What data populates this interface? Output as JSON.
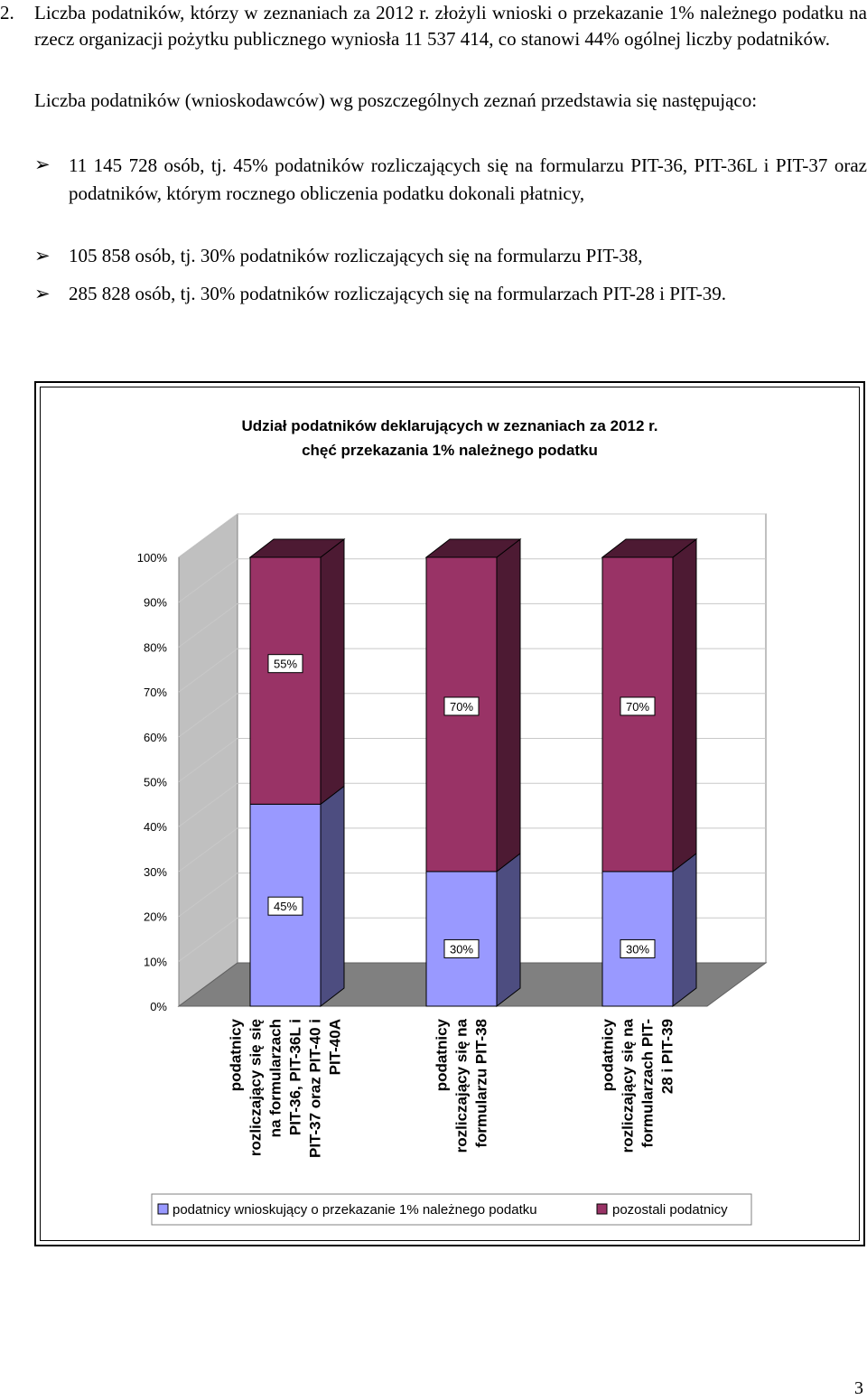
{
  "section": {
    "number": "2.",
    "paragraph1": "Liczba podatników, którzy w zeznaniach za 2012 r. złożyli wnioski o przekazanie 1% należnego podatku na rzecz organizacji pożytku publicznego wyniosła 11 537 414, co stanowi 44% ogólnej liczby podatników.",
    "paragraph2": "Liczba podatników (wnioskodawców) wg poszczególnych zeznań przedstawia się następująco:",
    "bullet_glyph": "➢",
    "bullets": [
      "11 145 728 osób, tj. 45% podatników rozliczających się na formularzu PIT-36, PIT-36L i PIT-37 oraz podatników, którym rocznego obliczenia podatku dokonali płatnicy,",
      "105 858 osób, tj. 30% podatników rozliczających się na formularzu PIT-38,",
      "285 828 osób, tj. 30% podatników rozliczających się na formularzach PIT-28 i PIT-39."
    ]
  },
  "chart_data": {
    "type": "bar",
    "stacked": true,
    "three_d": true,
    "title": [
      "Udział podatników deklarujących w zeznaniach za 2012 r.",
      "chęć przekazania 1% należnego podatku"
    ],
    "categories": [
      [
        "podatnicy",
        "rozliczający się się",
        "na formularzach",
        "PIT-36, PIT-36L i",
        "PIT-37 oraz PIT-40 i",
        "PIT-40A"
      ],
      [
        "podatnicy",
        "rozliczający się na",
        "formularzu PIT-38"
      ],
      [
        "podatnicy",
        "rozliczający się na",
        "formularzach PIT-",
        "28 i PIT-39"
      ]
    ],
    "series": [
      {
        "name": "podatnicy wnioskujący o przekazanie 1% należnego podatku",
        "values": [
          45,
          30,
          30
        ],
        "labels": [
          "45%",
          "30%",
          "30%"
        ],
        "color": "#9999ff",
        "side_color": "#4d4d80"
      },
      {
        "name": "pozostali podatnicy",
        "values": [
          55,
          70,
          70
        ],
        "labels": [
          "55%",
          "70%",
          "70%"
        ],
        "color": "#993366",
        "side_color": "#4d1a33"
      }
    ],
    "yticks": [
      "0%",
      "10%",
      "20%",
      "30%",
      "40%",
      "50%",
      "60%",
      "70%",
      "80%",
      "90%",
      "100%"
    ],
    "ylim": [
      0,
      100
    ],
    "legend_position": "bottom"
  },
  "page_number": "3"
}
